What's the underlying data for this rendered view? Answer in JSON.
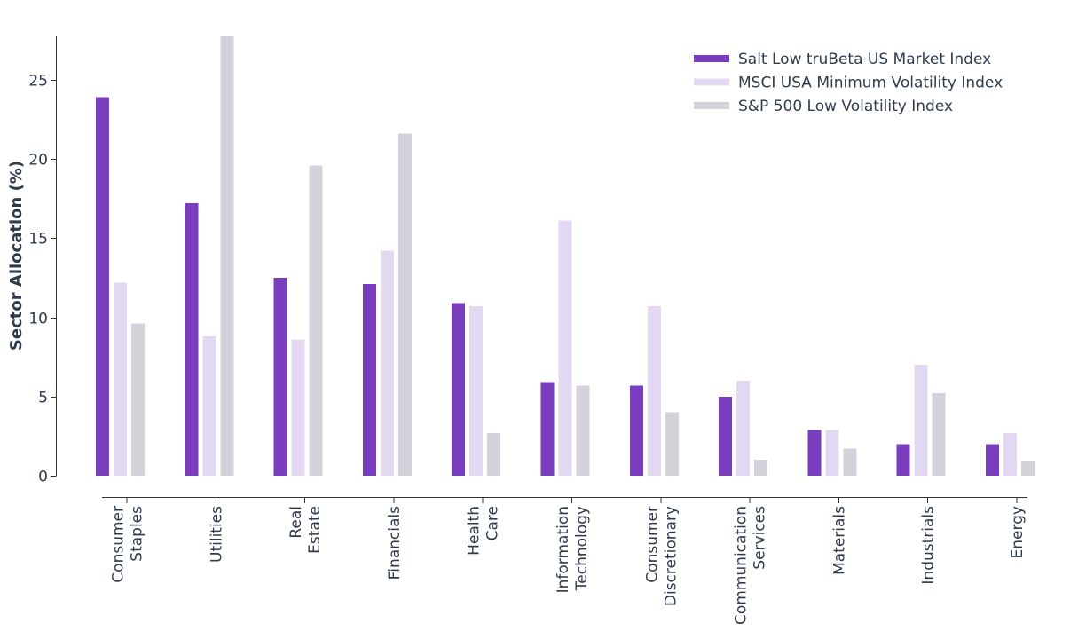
{
  "chart_data": {
    "type": "bar",
    "categories": [
      [
        "Consumer",
        "Staples"
      ],
      [
        "Utilities"
      ],
      [
        "Real",
        "Estate"
      ],
      [
        "Financials"
      ],
      [
        "Health",
        "Care"
      ],
      [
        "Information",
        "Technology"
      ],
      [
        "Consumer",
        "Discretionary"
      ],
      [
        "Communication",
        "Services"
      ],
      [
        "Materials"
      ],
      [
        "Industrials"
      ],
      [
        "Energy"
      ]
    ],
    "series": [
      {
        "name": "Salt Low truBeta US Market Index",
        "color": "#7a3dbd",
        "values": [
          23.9,
          17.2,
          12.5,
          12.1,
          10.9,
          5.9,
          5.7,
          5.0,
          2.9,
          2.0,
          2.0
        ]
      },
      {
        "name": "MSCI USA Minimum Volatility Index",
        "color": "#e2d8f1",
        "values": [
          12.2,
          8.8,
          8.6,
          14.2,
          10.7,
          16.1,
          10.7,
          6.0,
          2.9,
          7.0,
          2.7
        ]
      },
      {
        "name": "S&P 500 Low Volatility Index",
        "color": "#d3d1d9",
        "values": [
          9.6,
          27.8,
          19.6,
          21.6,
          2.7,
          5.7,
          4.0,
          1.0,
          1.7,
          5.2,
          0.9
        ]
      }
    ],
    "ylabel": "Sector Allocation (%)",
    "ylim": [
      0,
      27.8
    ],
    "yticks": [
      0,
      5,
      10,
      15,
      20,
      25
    ],
    "grid": false,
    "legend": "top-right"
  }
}
